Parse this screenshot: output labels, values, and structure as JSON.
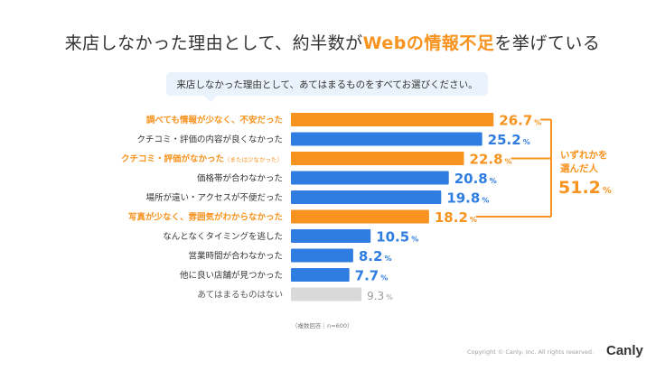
{
  "title": {
    "before": "来店しなかった理由として、約半数が",
    "highlight": "Webの情報不足",
    "after": "を挙げている"
  },
  "question": "来店しなかった理由として、あてはまるものをすべてお選びください。",
  "note": "（複数回答｜n=600）",
  "copyright": "Copyright © Canly, Inc. All rights reserved.",
  "logo": "Canly",
  "colors": {
    "orange": "#f7931e",
    "blue": "#2f7de1",
    "gray": "#d9d9d9",
    "gray_text": "#9a9a9a",
    "label_dark": "#333333"
  },
  "chart_data": {
    "type": "bar",
    "orientation": "horizontal",
    "unit": "%",
    "categories": [
      {
        "label": "調べても情報が少なく、不安だった",
        "value": 26.7,
        "display": "26.7",
        "kind": "orange"
      },
      {
        "label": "クチコミ・評価の内容が良くなかった",
        "value": 25.2,
        "display": "25.2",
        "kind": "blue"
      },
      {
        "label": "クチコミ・評価がなかった",
        "sub": "（または少なかった）",
        "value": 22.8,
        "display": "22.8",
        "kind": "orange"
      },
      {
        "label": "価格帯が合わなかった",
        "value": 20.8,
        "display": "20.8",
        "kind": "blue"
      },
      {
        "label": "場所が遠い・アクセスが不便だった",
        "value": 19.8,
        "display": "19.8",
        "kind": "blue"
      },
      {
        "label": "写真が少なく、雰囲気がわからなかった",
        "value": 18.2,
        "display": "18.2",
        "kind": "orange"
      },
      {
        "label": "なんとなくタイミングを逃した",
        "value": 10.5,
        "display": "10.5",
        "kind": "blue"
      },
      {
        "label": "営業時間が合わなかった",
        "value": 8.2,
        "display": "8.2",
        "kind": "blue"
      },
      {
        "label": "他に良い店舗が見つかった",
        "value": 7.7,
        "display": "7.7",
        "kind": "blue"
      },
      {
        "label": "あてはまるものはない",
        "value": 9.3,
        "display": "9.3",
        "kind": "gray"
      }
    ],
    "summary": {
      "label_line1": "いずれかを",
      "label_line2": "選んだ人",
      "value": "51.2",
      "unit": "%"
    }
  }
}
